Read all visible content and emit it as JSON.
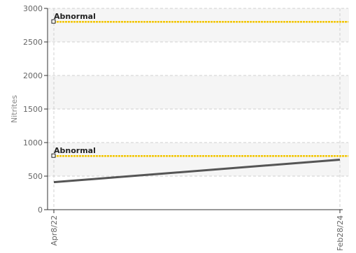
{
  "chart_data": {
    "type": "line",
    "ylabel": "Nitrites",
    "ylim": [
      0,
      3000
    ],
    "yticks": [
      0,
      500,
      1000,
      1500,
      2000,
      2500,
      3000
    ],
    "x": [
      "Apr8/22",
      "Feb28/24"
    ],
    "series": [
      {
        "values": [
          410,
          745
        ]
      }
    ],
    "reference_lines": [
      {
        "label": "Abnormal",
        "value": 2800
      },
      {
        "label": "Abnormal",
        "value": 800
      }
    ],
    "grid": true,
    "legend": "none"
  },
  "colors": {
    "series_line": "#555555",
    "reference_line": "#f2c500",
    "band": "#f5f5f5",
    "axis": "#333333",
    "text": "#666666"
  }
}
